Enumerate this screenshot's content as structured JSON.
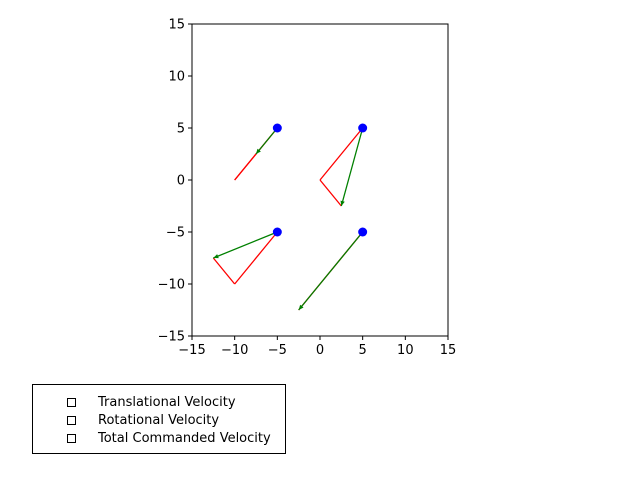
{
  "chart_data": {
    "type": "quiver",
    "xlim": [
      -15,
      15
    ],
    "ylim": [
      -15,
      15
    ],
    "xticks": [
      "−15",
      "−10",
      "−5",
      "0",
      "5",
      "10",
      "15"
    ],
    "yticks": [
      "−15",
      "−10",
      "−5",
      "0",
      "5",
      "10",
      "15"
    ],
    "grid": false,
    "legend_position": "below-left",
    "points": [
      {
        "x": -5,
        "y": 5
      },
      {
        "x": 5,
        "y": 5
      },
      {
        "x": -5,
        "y": -5
      },
      {
        "x": 5,
        "y": -5
      }
    ],
    "point_color": "#0000ff",
    "series": [
      {
        "name": "Translational Velocity",
        "color": "#ff0000",
        "segments": [
          {
            "from": [
              -5,
              5
            ],
            "to": [
              -10,
              0
            ]
          },
          {
            "from": [
              5,
              5
            ],
            "to": [
              0,
              0
            ]
          },
          {
            "from": [
              -5,
              -5
            ],
            "to": [
              -10,
              -10
            ]
          },
          {
            "from": [
              5,
              -5
            ],
            "to": [
              0,
              -10
            ]
          }
        ]
      },
      {
        "name": "Rotational Velocity",
        "color": "#ff0000",
        "segments": [
          {
            "from": [
              -10,
              0
            ],
            "to": [
              -7.5,
              2.5
            ]
          },
          {
            "from": [
              0,
              0
            ],
            "to": [
              2.5,
              -2.5
            ]
          },
          {
            "from": [
              -10,
              -10
            ],
            "to": [
              -12.5,
              -7.5
            ]
          },
          {
            "from": [
              0,
              -10
            ],
            "to": [
              -2.5,
              -12.5
            ]
          }
        ]
      },
      {
        "name": "Total Commanded Velocity",
        "color": "#008000",
        "segments": [
          {
            "from": [
              -5,
              5
            ],
            "to": [
              -7.5,
              2.5
            ]
          },
          {
            "from": [
              5,
              5
            ],
            "to": [
              2.5,
              -2.5
            ]
          },
          {
            "from": [
              -5,
              -5
            ],
            "to": [
              -12.5,
              -7.5
            ]
          },
          {
            "from": [
              5,
              -5
            ],
            "to": [
              -2.5,
              -12.5
            ]
          }
        ]
      }
    ]
  }
}
